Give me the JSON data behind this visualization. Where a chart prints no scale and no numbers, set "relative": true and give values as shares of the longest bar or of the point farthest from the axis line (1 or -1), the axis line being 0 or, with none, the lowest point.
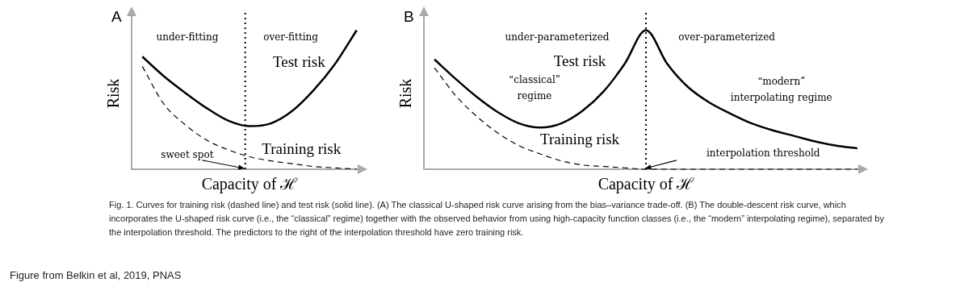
{
  "chart_data": [
    {
      "type": "line",
      "title": "A",
      "xlabel": "Capacity of ℋ",
      "ylabel": "Risk",
      "relative": true,
      "marker": "none",
      "categories": [
        null,
        null,
        null,
        null,
        null,
        null,
        null,
        null,
        null,
        null,
        null
      ],
      "series": [
        {
          "name": "Test risk",
          "color": "#000000",
          "line_style": "solid",
          "values": [
            0.81,
            0.67,
            0.55,
            0.44,
            0.35,
            0.31,
            0.33,
            0.42,
            0.57,
            0.76,
            1.0
          ]
        },
        {
          "name": "Training risk",
          "color": "#000000",
          "line_style": "dashed",
          "values": [
            0.74,
            0.47,
            0.32,
            0.21,
            0.14,
            0.09,
            0.06,
            0.04,
            0.02,
            0.01,
            0.0
          ]
        }
      ],
      "annotations": [
        "under-fitting",
        "over-fitting",
        "sweet spot"
      ]
    },
    {
      "type": "line",
      "title": "B",
      "xlabel": "Capacity of ℋ",
      "ylabel": "Risk",
      "relative": true,
      "marker": "none",
      "categories": [
        null,
        null,
        null,
        null,
        null,
        null,
        null,
        null,
        null,
        null,
        null,
        null,
        null,
        null,
        null,
        null,
        null,
        null,
        null,
        null,
        null
      ],
      "series": [
        {
          "name": "Test risk",
          "color": "#000000",
          "line_style": "solid",
          "values": [
            0.79,
            0.65,
            0.52,
            0.41,
            0.33,
            0.3,
            0.33,
            0.42,
            0.56,
            0.76,
            1.0,
            0.76,
            0.59,
            0.48,
            0.4,
            0.33,
            0.28,
            0.24,
            0.2,
            0.17,
            0.15
          ]
        },
        {
          "name": "Training risk",
          "color": "#000000",
          "line_style": "dashed",
          "values": [
            0.73,
            0.53,
            0.38,
            0.26,
            0.17,
            0.11,
            0.06,
            0.03,
            0.02,
            0.01,
            0.0,
            0.0,
            0.0,
            0.0,
            0.0,
            0.0,
            0.0,
            0.0,
            0.0,
            0.0,
            0.0
          ]
        }
      ],
      "annotations": [
        "under-parameterized",
        "over-parameterized",
        "“classical” regime",
        "“modern” interpolating regime",
        "interpolation threshold"
      ]
    },
    {
      "type": "other",
      "annotations": [
        "Fig. 1. Curves for training risk (dashed line) and test risk (solid line). (A) The classical U-shaped risk curve arising from the bias–variance trade-off. (B) The double-descent risk curve, which incorporates the U-shaped risk curve (i.e., the “classical” regime) together with the observed behavior from using high-capacity function classes (i.e., the “modern” interpolating regime), separated by the interpolation threshold. The predictors to the right of the interpolation threshold have zero training risk.",
        "Figure from Belkin et al, 2019, PNAS"
      ]
    }
  ]
}
